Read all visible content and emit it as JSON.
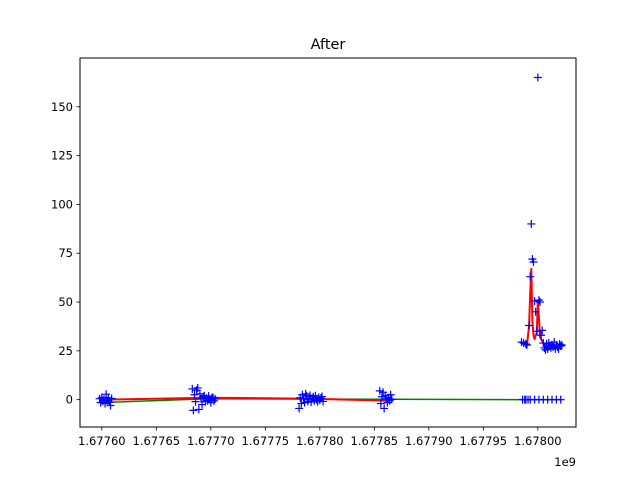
{
  "chart_data": {
    "type": "line",
    "title": "After",
    "xlabel": "",
    "ylabel": "",
    "x_offset_label": "1e9",
    "xlim": [
      1.67758,
      1.678035
    ],
    "ylim": [
      -14,
      175
    ],
    "grid": false,
    "x_ticks": [
      1.6776,
      1.67765,
      1.6777,
      1.67775,
      1.6778,
      1.67785,
      1.6779,
      1.67795,
      1.678
    ],
    "x_tick_labels": [
      "1.67760",
      "1.67765",
      "1.67770",
      "1.67775",
      "1.67780",
      "1.67785",
      "1.67790",
      "1.67795",
      "1.67800"
    ],
    "y_ticks": [
      0,
      25,
      50,
      75,
      100,
      125,
      150
    ],
    "y_tick_labels": [
      "0",
      "25",
      "50",
      "75",
      "100",
      "125",
      "150"
    ],
    "series": [
      {
        "style": "markers",
        "marker": "+",
        "color": "#0000ff",
        "points": [
          [
            1.677598,
            0.5
          ],
          [
            1.677599,
            -1.5
          ],
          [
            1.6776,
            1.2
          ],
          [
            1.677601,
            -0.8
          ],
          [
            1.677602,
            0.3
          ],
          [
            1.677603,
            -2.0
          ],
          [
            1.677604,
            2.8
          ],
          [
            1.677605,
            -0.5
          ],
          [
            1.677606,
            1.0
          ],
          [
            1.677607,
            -1.2
          ],
          [
            1.677608,
            -3.0
          ],
          [
            1.677609,
            0.6
          ],
          [
            1.677683,
            5.5
          ],
          [
            1.677684,
            -5.5
          ],
          [
            1.677685,
            2.5
          ],
          [
            1.677686,
            -1.0
          ],
          [
            1.677687,
            4.8
          ],
          [
            1.677688,
            6.0
          ],
          [
            1.677689,
            -5.0
          ],
          [
            1.67769,
            3.0
          ],
          [
            1.677691,
            0.5
          ],
          [
            1.677692,
            -2.5
          ],
          [
            1.677693,
            1.5
          ],
          [
            1.677694,
            2.0
          ],
          [
            1.677695,
            -1.0
          ],
          [
            1.677696,
            0.8
          ],
          [
            1.677697,
            -0.5
          ],
          [
            1.677698,
            1.8
          ],
          [
            1.677699,
            0.2
          ],
          [
            1.6777,
            -1.5
          ],
          [
            1.677701,
            0.9
          ],
          [
            1.677702,
            1.2
          ],
          [
            1.677703,
            -0.6
          ],
          [
            1.677704,
            0.4
          ],
          [
            1.677781,
            -4.5
          ],
          [
            1.677782,
            1.0
          ],
          [
            1.677783,
            -2.0
          ],
          [
            1.677784,
            2.5
          ],
          [
            1.677785,
            0.5
          ],
          [
            1.677786,
            -1.5
          ],
          [
            1.677787,
            3.0
          ],
          [
            1.677788,
            1.8
          ],
          [
            1.677789,
            -0.8
          ],
          [
            1.67779,
            0.3
          ],
          [
            1.677791,
            2.2
          ],
          [
            1.677792,
            -1.2
          ],
          [
            1.677793,
            0.6
          ],
          [
            1.677794,
            1.5
          ],
          [
            1.677795,
            -0.5
          ],
          [
            1.677796,
            2.0
          ],
          [
            1.677797,
            0.1
          ],
          [
            1.677798,
            -1.0
          ],
          [
            1.677799,
            1.1
          ],
          [
            1.6778,
            -0.3
          ],
          [
            1.677801,
            0.8
          ],
          [
            1.677802,
            1.6
          ],
          [
            1.677803,
            -0.9
          ],
          [
            1.677855,
            4.5
          ],
          [
            1.677856,
            -2.0
          ],
          [
            1.677857,
            1.5
          ],
          [
            1.677858,
            3.8
          ],
          [
            1.677859,
            -4.5
          ],
          [
            1.67786,
            2.0
          ],
          [
            1.677861,
            0.5
          ],
          [
            1.677862,
            -1.5
          ],
          [
            1.677863,
            1.0
          ],
          [
            1.677864,
            -0.5
          ],
          [
            1.677865,
            2.5
          ],
          [
            1.677866,
            0.2
          ],
          [
            1.677985,
            29.5
          ],
          [
            1.677986,
            0
          ],
          [
            1.677987,
            29.0
          ],
          [
            1.677988,
            0
          ],
          [
            1.677989,
            28.5
          ],
          [
            1.67799,
            28.0
          ],
          [
            1.677991,
            0
          ],
          [
            1.677992,
            38.0
          ],
          [
            1.677993,
            63.0
          ],
          [
            1.677994,
            90.0
          ],
          [
            1.677995,
            72.0
          ],
          [
            1.677996,
            70.5
          ],
          [
            1.677997,
            50.5
          ],
          [
            1.677998,
            45.0
          ],
          [
            1.677999,
            35.0
          ],
          [
            1.678,
            165.0
          ],
          [
            1.678001,
            51.0
          ],
          [
            1.678002,
            50.0
          ],
          [
            1.678003,
            33.0
          ],
          [
            1.678004,
            35.5
          ],
          [
            1.678005,
            29.0
          ],
          [
            1.678006,
            26.5
          ],
          [
            1.678007,
            25.5
          ],
          [
            1.678008,
            28.5
          ],
          [
            1.678009,
            26.0
          ],
          [
            1.67801,
            29.0
          ],
          [
            1.678011,
            27.5
          ],
          [
            1.678012,
            26.5
          ],
          [
            1.678013,
            28.0
          ],
          [
            1.678014,
            27.0
          ],
          [
            1.678015,
            29.5
          ],
          [
            1.678016,
            26.0
          ],
          [
            1.678017,
            28.0
          ],
          [
            1.678018,
            27.0
          ],
          [
            1.678019,
            26.0
          ],
          [
            1.67802,
            28.5
          ],
          [
            1.678021,
            27.5
          ],
          [
            1.678022,
            28.0
          ],
          [
            1.677989,
            0
          ],
          [
            1.677993,
            0
          ],
          [
            1.677997,
            0
          ],
          [
            1.678001,
            0
          ],
          [
            1.678005,
            0
          ],
          [
            1.678009,
            0
          ],
          [
            1.678013,
            0
          ],
          [
            1.678017,
            0
          ],
          [
            1.678021,
            0
          ]
        ]
      },
      {
        "style": "line",
        "color": "#008000",
        "points": [
          [
            1.6776,
            -1.5
          ],
          [
            1.677698,
            0.5
          ],
          [
            1.677792,
            0.3
          ],
          [
            1.677862,
            0.2
          ],
          [
            1.677985,
            0
          ],
          [
            1.678022,
            0
          ]
        ]
      },
      {
        "style": "line",
        "color": "#ff0000",
        "points": [
          [
            1.6776,
            0
          ],
          [
            1.677698,
            1.0
          ],
          [
            1.677792,
            0.5
          ],
          [
            1.677862,
            -0.5
          ]
        ]
      },
      {
        "style": "line",
        "color": "#ff0000",
        "points": [
          [
            1.677985,
            29
          ],
          [
            1.677988,
            29
          ],
          [
            1.67799,
            28
          ],
          [
            1.677992,
            38
          ],
          [
            1.677993,
            55
          ],
          [
            1.677994,
            67
          ],
          [
            1.677995,
            40
          ],
          [
            1.677996,
            33
          ],
          [
            1.677997,
            31
          ],
          [
            1.677998,
            33
          ],
          [
            1.677999,
            34
          ],
          [
            1.678,
            50
          ],
          [
            1.678001,
            42
          ],
          [
            1.678002,
            32
          ],
          [
            1.678004,
            30
          ],
          [
            1.678006,
            28
          ],
          [
            1.678009,
            27
          ],
          [
            1.678012,
            28
          ],
          [
            1.678016,
            27
          ],
          [
            1.678019,
            28
          ],
          [
            1.678022,
            27.5
          ]
        ]
      }
    ]
  }
}
